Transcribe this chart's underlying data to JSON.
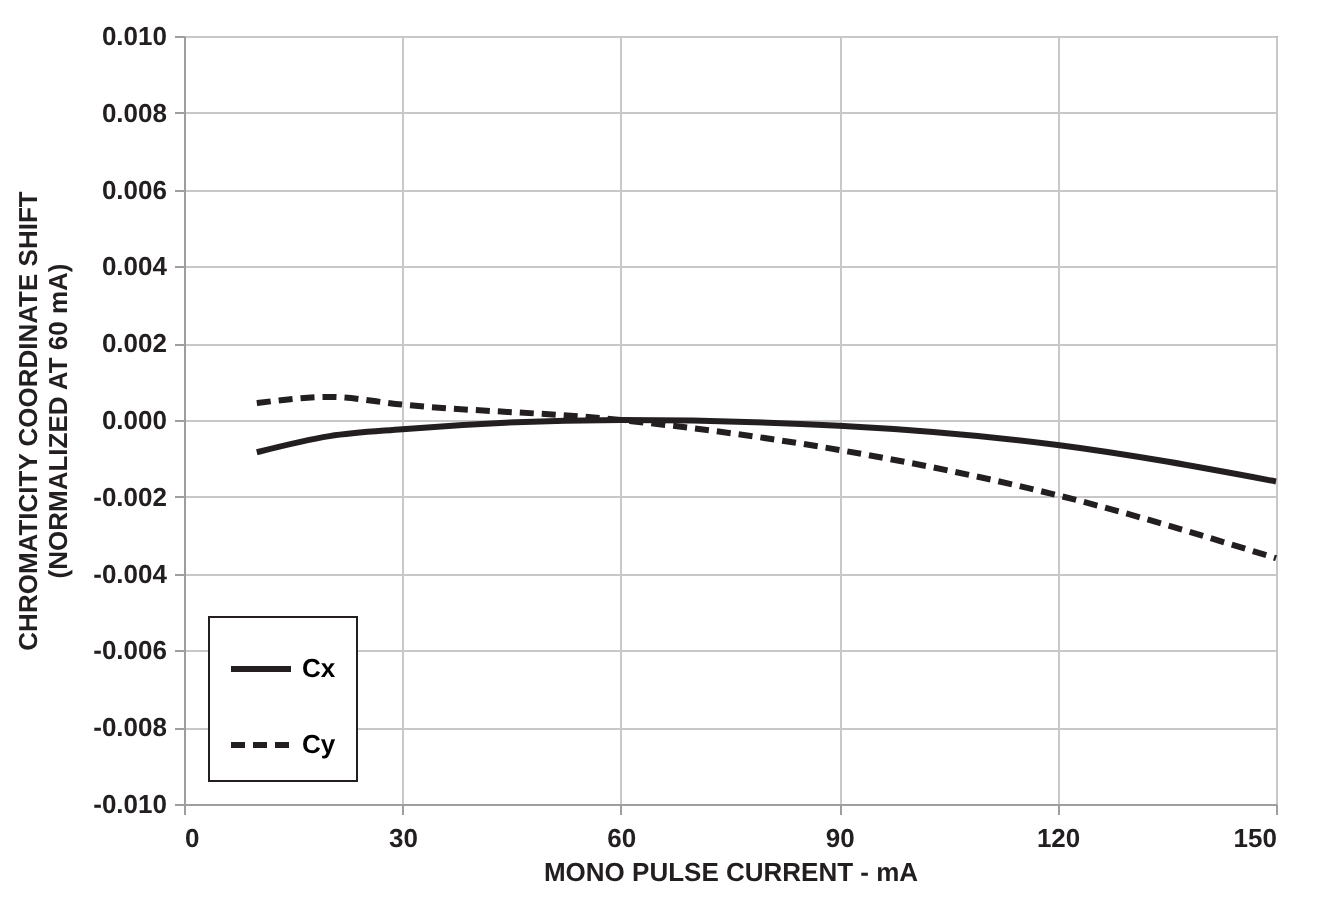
{
  "chart_data": {
    "type": "line",
    "xlabel": "MONO PULSE CURRENT - mA",
    "ylabel": "CHROMATICITY COORDINATE SHIFT\n(NORMALIZED AT 60 mA)",
    "x": [
      10,
      20,
      30,
      60,
      90,
      120,
      150
    ],
    "series": [
      {
        "name": "Cx",
        "color": "#231f20",
        "line_style": "solid",
        "values": [
          -0.00084,
          -0.00042,
          -0.00024,
          0,
          -0.00015,
          -0.00065,
          -0.0016
        ]
      },
      {
        "name": "Cy",
        "color": "#231f20",
        "line_style": "dashed",
        "values": [
          0.00044,
          0.0006,
          0.0004,
          0,
          -0.00078,
          -0.00196,
          -0.0036
        ]
      }
    ],
    "xlim": [
      0,
      150
    ],
    "xticks": [
      0,
      30,
      60,
      90,
      120,
      150
    ],
    "ylim": [
      -0.01,
      0.01
    ],
    "yticks": [
      {
        "value": -0.01,
        "label": "-0.010"
      },
      {
        "value": -0.008,
        "label": "-0.008"
      },
      {
        "value": -0.006,
        "label": "-0.006"
      },
      {
        "value": -0.004,
        "label": "-0.004"
      },
      {
        "value": -0.002,
        "label": "-0.002"
      },
      {
        "value": 0,
        "label": "0.000"
      },
      {
        "value": 0.002,
        "label": "0.002"
      },
      {
        "value": 0.004,
        "label": "0.004"
      },
      {
        "value": 0.006,
        "label": "0.006"
      },
      {
        "value": 0.008,
        "label": "0.008"
      },
      {
        "value": 0.01,
        "label": "0.010"
      }
    ],
    "grid": true,
    "legend": "bottom left",
    "marker": "none"
  }
}
